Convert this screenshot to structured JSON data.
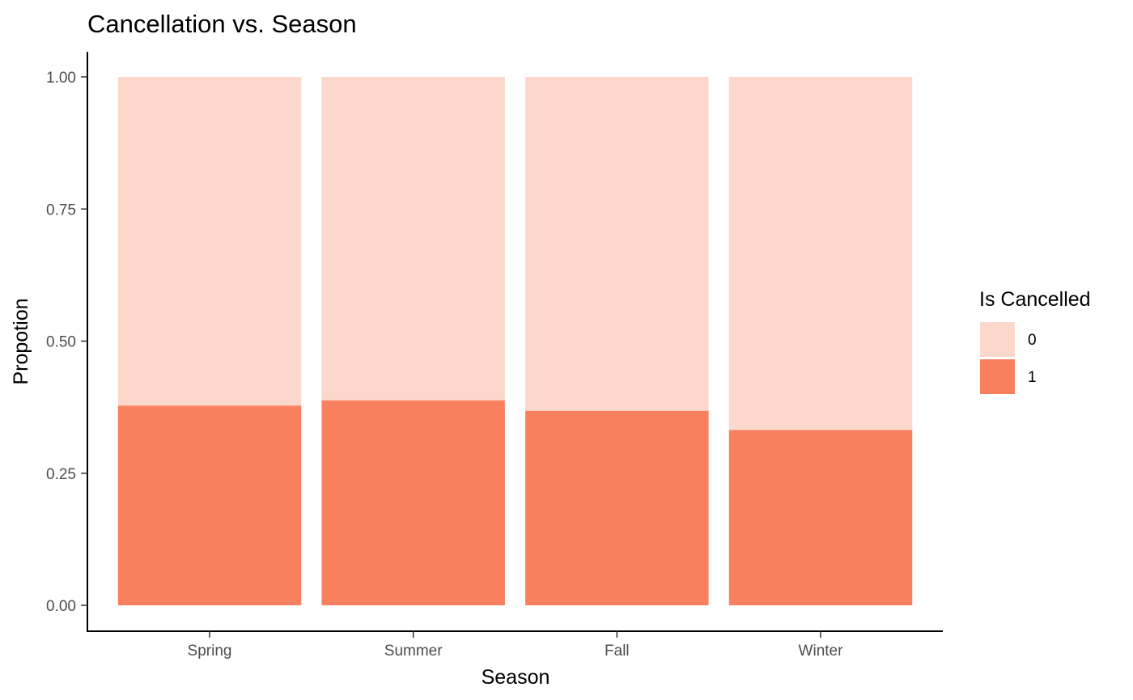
{
  "chart_data": {
    "type": "bar",
    "stacked": true,
    "title": "Cancellation vs. Season",
    "xlabel": "Season",
    "ylabel": "Propotion",
    "categories": [
      "Spring",
      "Summer",
      "Fall",
      "Winter"
    ],
    "series": [
      {
        "name": "1",
        "values": [
          0.378,
          0.388,
          0.368,
          0.332
        ],
        "color": "#F8805F"
      },
      {
        "name": "0",
        "values": [
          0.622,
          0.612,
          0.632,
          0.668
        ],
        "color": "#FCD8CC"
      }
    ],
    "ylim": [
      0,
      1
    ],
    "yticks": [
      "0.00",
      "0.25",
      "0.50",
      "0.75",
      "1.00"
    ],
    "legend": {
      "title": "Is Cancelled",
      "position": "right",
      "entries": [
        {
          "label": "0",
          "color": "#FCD8CC"
        },
        {
          "label": "1",
          "color": "#F8805F"
        }
      ]
    },
    "grid": false
  }
}
